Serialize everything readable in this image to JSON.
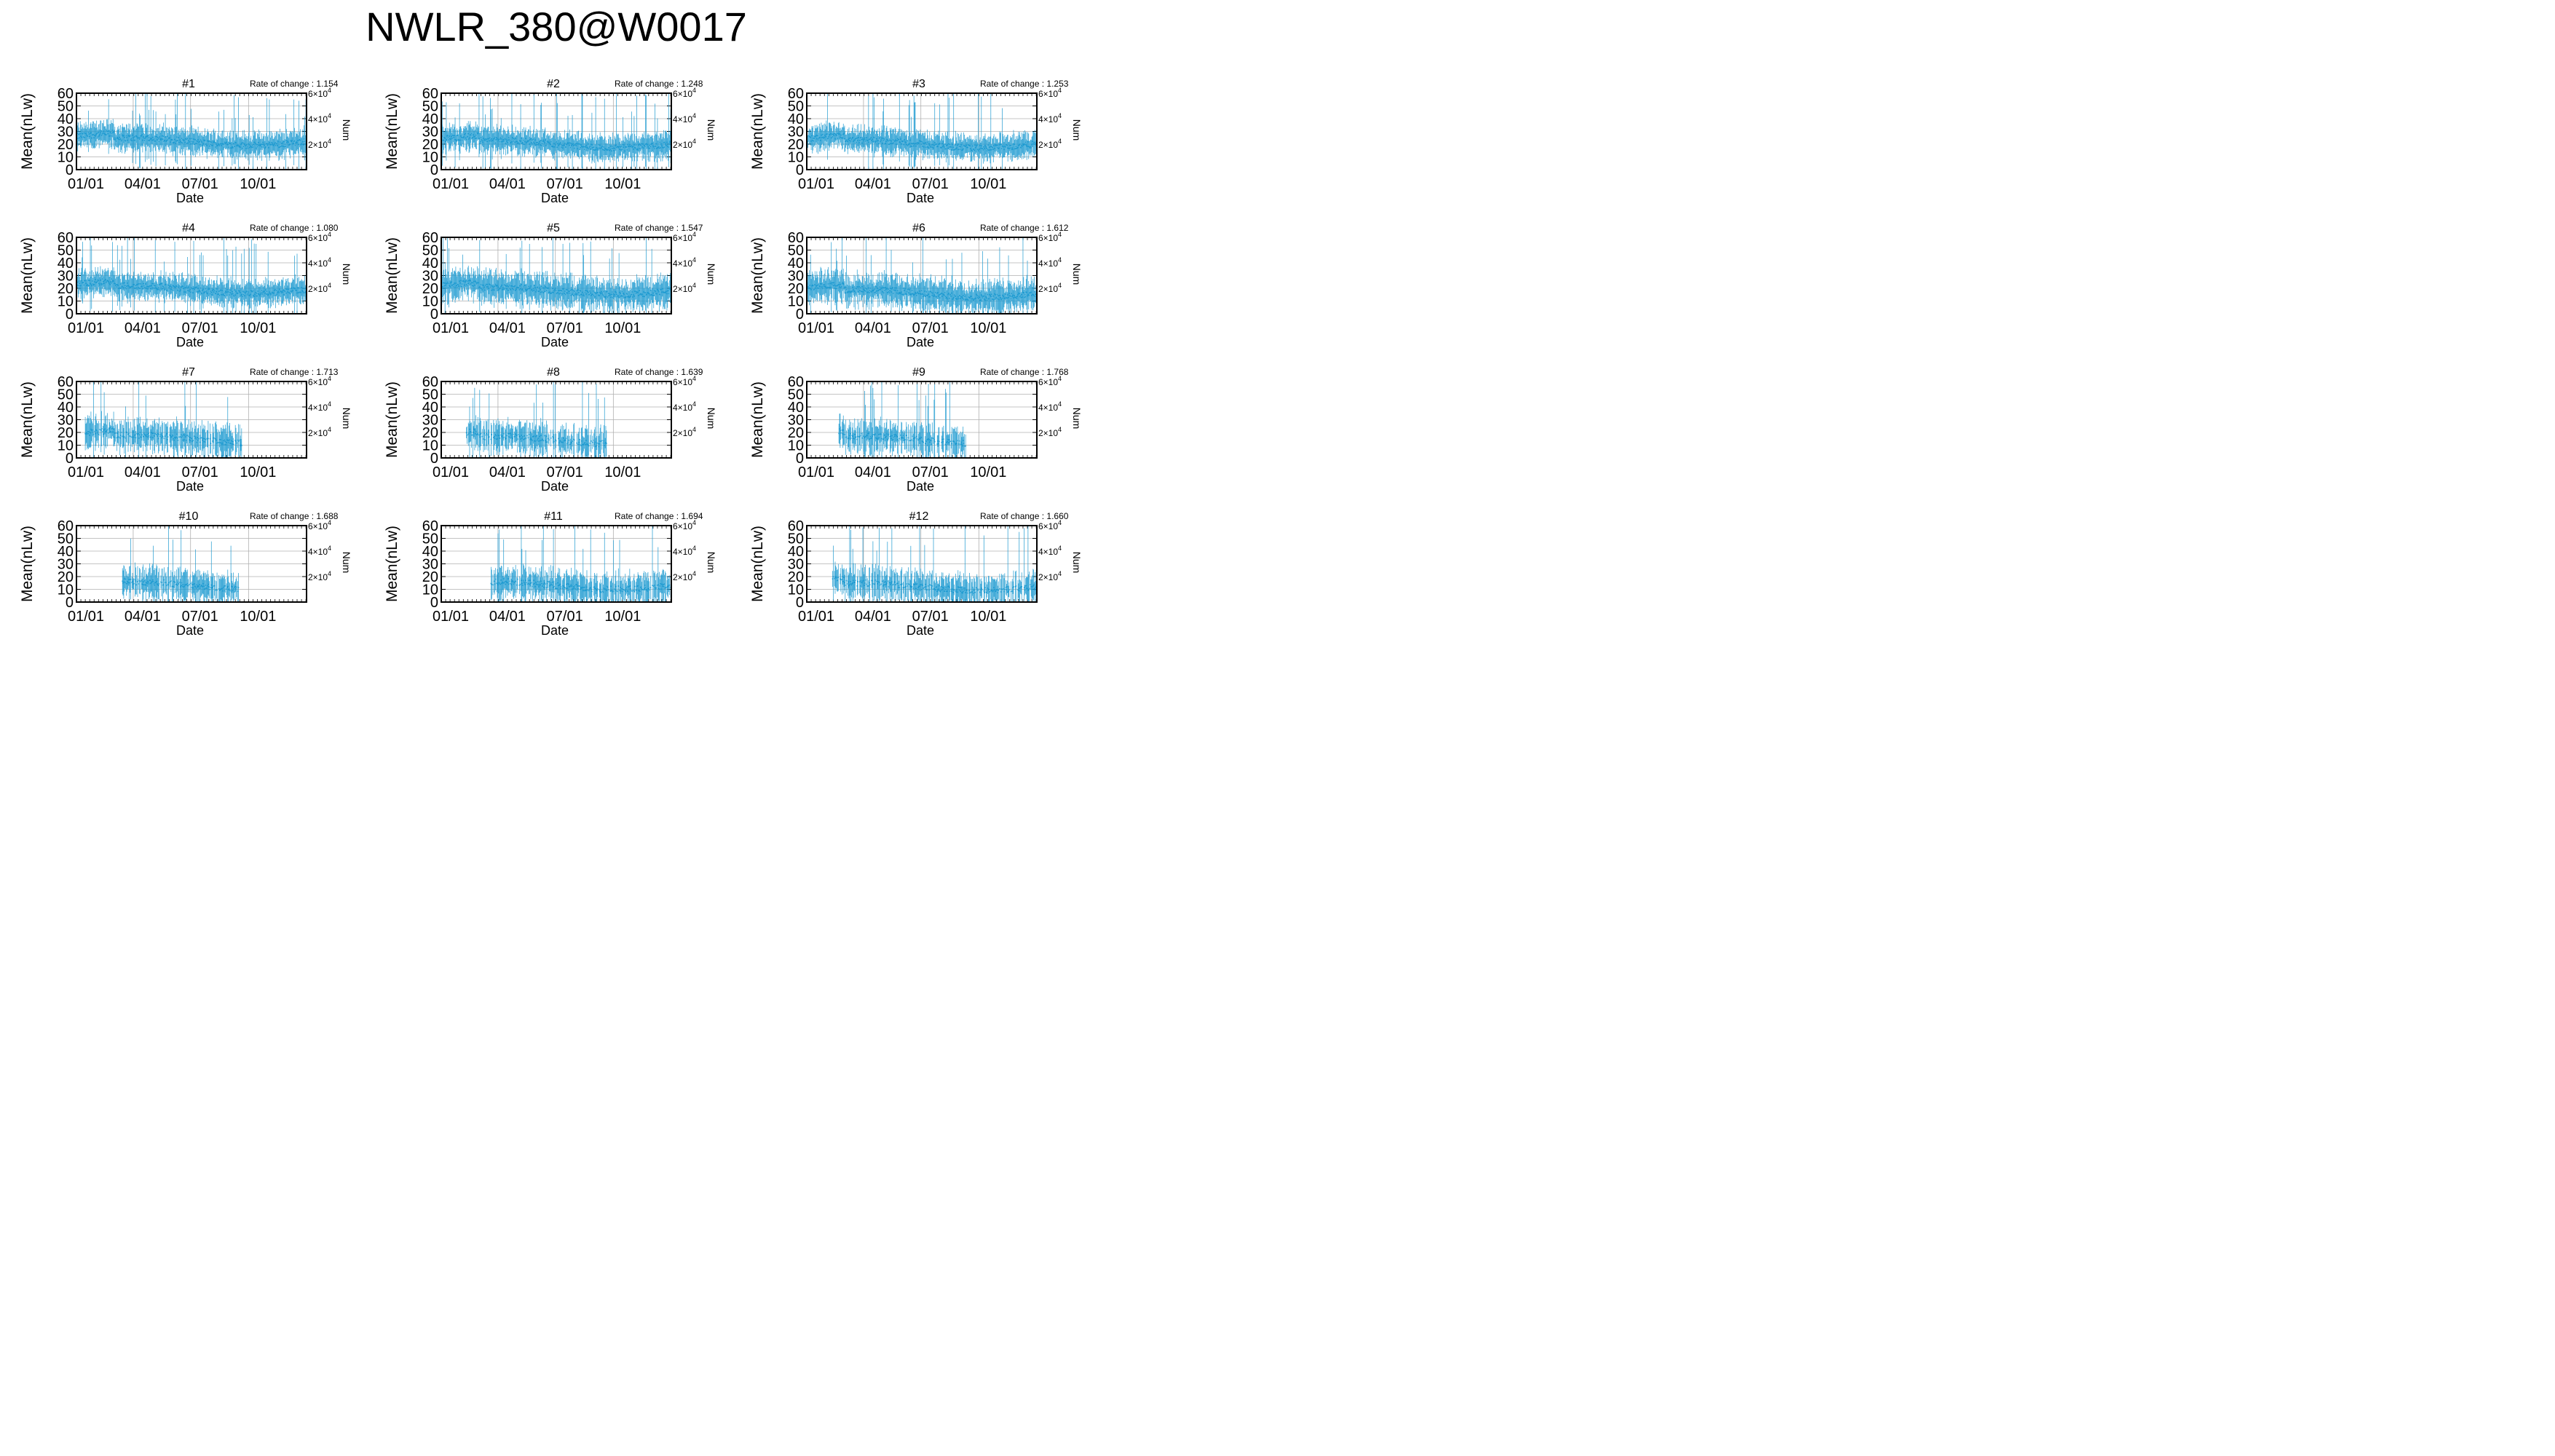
{
  "title": "NWLR_380@W0017",
  "colors": {
    "series": "#1f9bd1",
    "grid": "#b0b0b0",
    "axis": "#000000"
  },
  "axis_text": {
    "ylabel": "Mean(nLw)",
    "xlabel": "Date",
    "y2label": "Num",
    "yticks": [
      "0",
      "10",
      "20",
      "30",
      "40",
      "50",
      "60"
    ],
    "xticks": [
      "01/01",
      "04/01",
      "07/01",
      "10/01"
    ],
    "y2ticks": [
      {
        "mant": "2×10",
        "exp": "4"
      },
      {
        "mant": "4×10",
        "exp": "4"
      },
      {
        "mant": "6×10",
        "exp": "4"
      }
    ],
    "rate_prefix": "Rate of change : "
  },
  "panels": [
    {
      "label": "#1",
      "rate": "1.154"
    },
    {
      "label": "#2",
      "rate": "1.248"
    },
    {
      "label": "#3",
      "rate": "1.253"
    },
    {
      "label": "#4",
      "rate": "1.080"
    },
    {
      "label": "#5",
      "rate": "1.547"
    },
    {
      "label": "#6",
      "rate": "1.612"
    },
    {
      "label": "#7",
      "rate": "1.713"
    },
    {
      "label": "#8",
      "rate": "1.639"
    },
    {
      "label": "#9",
      "rate": "1.768"
    },
    {
      "label": "#10",
      "rate": "1.688"
    },
    {
      "label": "#11",
      "rate": "1.694"
    },
    {
      "label": "#12",
      "rate": "1.660"
    }
  ],
  "chart_data": {
    "type": "scatter",
    "title": "NWLR_380@W0017",
    "xlabel": "Date",
    "ylabel": "Mean(nLw)",
    "y2label": "Num",
    "ylim": [
      0,
      60
    ],
    "x_tick_labels": [
      "01/01",
      "04/01",
      "07/01",
      "10/01"
    ],
    "y_tick_labels": [
      "0",
      "10",
      "20",
      "30",
      "40",
      "50",
      "60"
    ],
    "y2_tick_labels": [
      "2×10^4",
      "4×10^4",
      "6×10^4"
    ],
    "grid": true,
    "series_style": "daily mean with vertical error bars",
    "panels": [
      {
        "label": "#1",
        "rate_of_change": 1.154,
        "typical_mean": 22,
        "data_window": [
          "01/01",
          "12/31"
        ]
      },
      {
        "label": "#2",
        "rate_of_change": 1.248,
        "typical_mean": 20,
        "data_window": [
          "01/01",
          "12/31"
        ]
      },
      {
        "label": "#3",
        "rate_of_change": 1.253,
        "typical_mean": 20,
        "data_window": [
          "01/01",
          "12/31"
        ]
      },
      {
        "label": "#4",
        "rate_of_change": 1.08,
        "typical_mean": 19,
        "data_window": [
          "01/01",
          "12/31"
        ]
      },
      {
        "label": "#5",
        "rate_of_change": 1.547,
        "typical_mean": 18,
        "data_window": [
          "01/01",
          "12/31"
        ]
      },
      {
        "label": "#6",
        "rate_of_change": 1.612,
        "typical_mean": 16,
        "data_window": [
          "01/01",
          "12/31"
        ]
      },
      {
        "label": "#7",
        "rate_of_change": 1.713,
        "typical_mean": 15,
        "data_window": [
          "01/15",
          "09/20"
        ]
      },
      {
        "label": "#8",
        "rate_of_change": 1.639,
        "typical_mean": 14,
        "data_window": [
          "02/10",
          "09/20"
        ]
      },
      {
        "label": "#9",
        "rate_of_change": 1.768,
        "typical_mean": 14,
        "data_window": [
          "02/20",
          "09/10"
        ]
      },
      {
        "label": "#10",
        "rate_of_change": 1.688,
        "typical_mean": 13,
        "data_window": [
          "03/15",
          "09/15"
        ]
      },
      {
        "label": "#11",
        "rate_of_change": 1.694,
        "typical_mean": 13,
        "data_window": [
          "03/20",
          "12/31"
        ]
      },
      {
        "label": "#12",
        "rate_of_change": 1.66,
        "typical_mean": 12,
        "data_window": [
          "02/10",
          "12/31"
        ]
      }
    ]
  }
}
